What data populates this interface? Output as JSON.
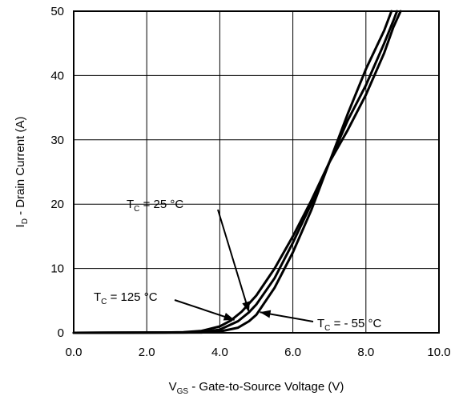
{
  "chart_data": {
    "type": "line",
    "title": "",
    "xlabel": {
      "main": "V",
      "sub": "GS",
      "rest": " - Gate-to-Source Voltage (V)"
    },
    "ylabel": {
      "main": "I",
      "sub": "D",
      "rest": " - Drain Current (A)"
    },
    "xlim": [
      0,
      10
    ],
    "ylim": [
      0,
      50
    ],
    "x_ticks": [
      "0.0",
      "2.0",
      "4.0",
      "6.0",
      "8.0",
      "10.0"
    ],
    "y_ticks": [
      "0",
      "10",
      "20",
      "30",
      "40",
      "50"
    ],
    "grid": true,
    "series": [
      {
        "name": "T_C = 125 °C",
        "points": [
          [
            0,
            0
          ],
          [
            2.5,
            0.05
          ],
          [
            3.0,
            0.1
          ],
          [
            3.5,
            0.3
          ],
          [
            4.0,
            1.0
          ],
          [
            4.3,
            1.9
          ],
          [
            4.6,
            3.3
          ],
          [
            5.0,
            5.8
          ],
          [
            5.5,
            10.0
          ],
          [
            6.0,
            15.0
          ],
          [
            6.5,
            20.5
          ],
          [
            7.0,
            26.5
          ],
          [
            7.5,
            31.5
          ],
          [
            8.0,
            37.0
          ],
          [
            8.5,
            43.5
          ],
          [
            8.75,
            47.5
          ],
          [
            8.95,
            50
          ]
        ]
      },
      {
        "name": "T_C = 25 °C",
        "points": [
          [
            0,
            0
          ],
          [
            3.0,
            0.05
          ],
          [
            3.5,
            0.1
          ],
          [
            4.0,
            0.5
          ],
          [
            4.5,
            1.8
          ],
          [
            4.8,
            3.2
          ],
          [
            5.0,
            4.4
          ],
          [
            5.5,
            8.5
          ],
          [
            6.0,
            14.0
          ],
          [
            6.5,
            20.0
          ],
          [
            7.0,
            26.5
          ],
          [
            7.5,
            33.0
          ],
          [
            8.0,
            38.5
          ],
          [
            8.5,
            45.0
          ],
          [
            8.75,
            48.5
          ],
          [
            8.85,
            50
          ]
        ]
      },
      {
        "name": "T_C = - 55 °C",
        "points": [
          [
            0,
            0
          ],
          [
            3.5,
            0.05
          ],
          [
            4.0,
            0.2
          ],
          [
            4.5,
            0.8
          ],
          [
            4.8,
            1.8
          ],
          [
            5.0,
            2.8
          ],
          [
            5.5,
            7.0
          ],
          [
            6.0,
            12.5
          ],
          [
            6.5,
            19.0
          ],
          [
            7.0,
            26.5
          ],
          [
            7.5,
            34.0
          ],
          [
            8.0,
            41.0
          ],
          [
            8.5,
            47.0
          ],
          [
            8.7,
            50
          ]
        ]
      }
    ],
    "annotations": [
      {
        "main": "T",
        "sub": "C",
        "rest": " = 25 °C",
        "target": [
          4.8,
          3.2
        ]
      },
      {
        "main": "T",
        "sub": "C",
        "rest": " = 125 °C",
        "target": [
          4.4,
          2.0
        ]
      },
      {
        "main": "T",
        "sub": "C",
        "rest": " = - 55 °C",
        "target": [
          5.1,
          3.2
        ]
      }
    ]
  }
}
